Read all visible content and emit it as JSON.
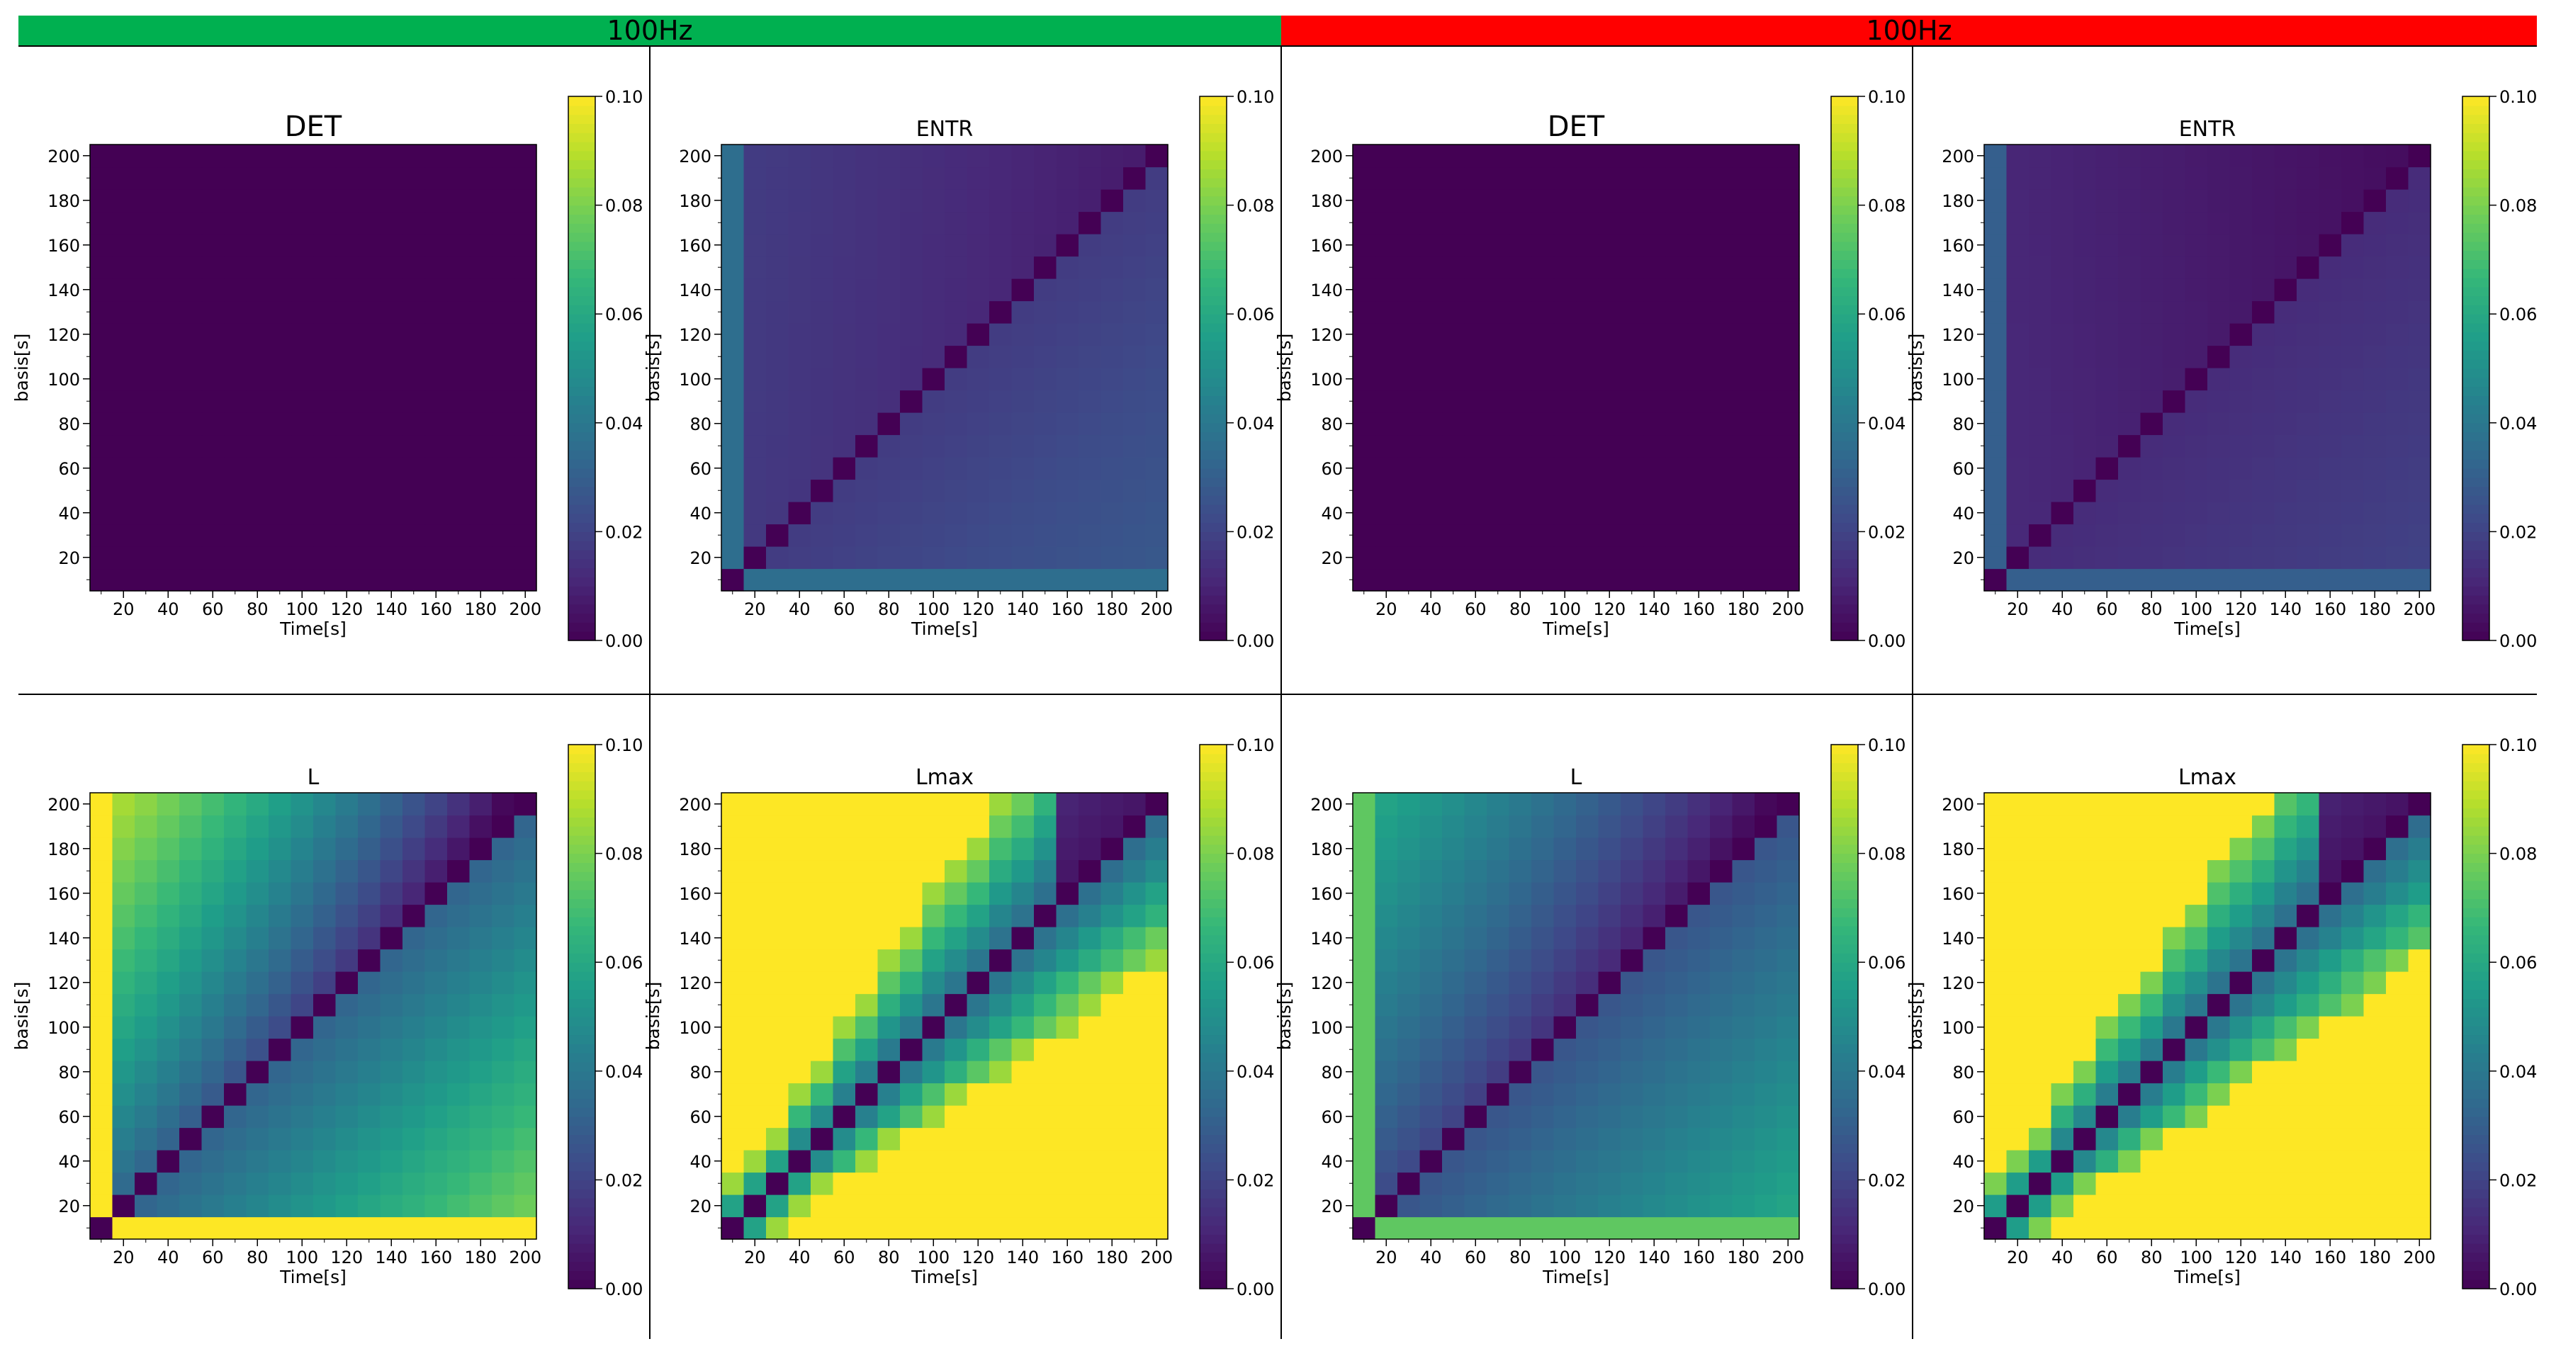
{
  "banners": [
    {
      "label": "100Hz",
      "color": "#00b050"
    },
    {
      "label": "100Hz",
      "color": "#ff0000"
    }
  ],
  "colorbar": {
    "colormap": "viridis",
    "vmin": 0.0,
    "vmax": 0.1,
    "ticks": [
      "0.00",
      "0.02",
      "0.04",
      "0.06",
      "0.08",
      "0.10"
    ]
  },
  "chart_data": [
    {
      "type": "heatmap",
      "title": "DET",
      "xlabel": "Time[s]",
      "ylabel": "basis[s]",
      "grid_size": 20,
      "xlim": [
        5,
        205
      ],
      "ylim": [
        5,
        205
      ],
      "x_ticks": [
        20,
        40,
        60,
        80,
        100,
        120,
        140,
        160,
        180,
        200
      ],
      "y_ticks": [
        20,
        40,
        60,
        80,
        100,
        120,
        140,
        160,
        180,
        200
      ],
      "value_range": [
        0,
        0.1
      ],
      "pattern": {
        "kind": "uniform",
        "value": 0.0
      }
    },
    {
      "type": "heatmap",
      "title": "ENTR",
      "xlabel": "Time[s]",
      "ylabel": "basis[s]",
      "grid_size": 20,
      "xlim": [
        5,
        205
      ],
      "ylim": [
        5,
        205
      ],
      "x_ticks": [
        20,
        40,
        60,
        80,
        100,
        120,
        140,
        160,
        180,
        200
      ],
      "y_ticks": [
        20,
        40,
        60,
        80,
        100,
        120,
        140,
        160,
        180,
        200
      ],
      "value_range": [
        0,
        0.1
      ],
      "pattern": {
        "kind": "entropy",
        "diag": 0.0,
        "edge": 0.036,
        "near": 0.017,
        "far": 0.028,
        "far_top": 0.018
      }
    },
    {
      "type": "heatmap",
      "title": "DET",
      "xlabel": "Time[s]",
      "ylabel": "basis[s]",
      "grid_size": 20,
      "xlim": [
        5,
        205
      ],
      "ylim": [
        5,
        205
      ],
      "x_ticks": [
        20,
        40,
        60,
        80,
        100,
        120,
        140,
        160,
        180,
        200
      ],
      "y_ticks": [
        20,
        40,
        60,
        80,
        100,
        120,
        140,
        160,
        180,
        200
      ],
      "value_range": [
        0,
        0.1
      ],
      "pattern": {
        "kind": "uniform",
        "value": 0.0
      }
    },
    {
      "type": "heatmap",
      "title": "ENTR",
      "xlabel": "Time[s]",
      "ylabel": "basis[s]",
      "grid_size": 20,
      "xlim": [
        5,
        205
      ],
      "ylim": [
        5,
        205
      ],
      "x_ticks": [
        20,
        40,
        60,
        80,
        100,
        120,
        140,
        160,
        180,
        200
      ],
      "y_ticks": [
        20,
        40,
        60,
        80,
        100,
        120,
        140,
        160,
        180,
        200
      ],
      "value_range": [
        0,
        0.1
      ],
      "pattern": {
        "kind": "entropy",
        "diag": 0.0,
        "edge": 0.03,
        "near": 0.012,
        "far": 0.02,
        "far_top": 0.011
      }
    },
    {
      "type": "heatmap",
      "title": "L",
      "xlabel": "Time[s]",
      "ylabel": "basis[s]",
      "grid_size": 20,
      "xlim": [
        5,
        205
      ],
      "ylim": [
        5,
        205
      ],
      "x_ticks": [
        20,
        40,
        60,
        80,
        100,
        120,
        140,
        160,
        180,
        200
      ],
      "y_ticks": [
        20,
        40,
        60,
        80,
        100,
        120,
        140,
        160,
        180,
        200
      ],
      "value_range": [
        0,
        0.1
      ],
      "pattern": {
        "kind": "length",
        "diag": 0.0,
        "col0": 0.1,
        "row0": 0.1,
        "upper_near": 0.03,
        "upper_far": 0.09,
        "upper_top": 0.01,
        "lower_near": 0.03,
        "lower_far": 0.08
      }
    },
    {
      "type": "heatmap",
      "title": "Lmax",
      "xlabel": "Time[s]",
      "ylabel": "basis[s]",
      "grid_size": 20,
      "xlim": [
        5,
        205
      ],
      "ylim": [
        5,
        205
      ],
      "x_ticks": [
        20,
        40,
        60,
        80,
        100,
        120,
        140,
        160,
        180,
        200
      ],
      "y_ticks": [
        20,
        40,
        60,
        80,
        100,
        120,
        140,
        160,
        180,
        200
      ],
      "value_range": [
        0,
        0.1
      ],
      "pattern": {
        "kind": "lmax",
        "diag": 0.0,
        "band_near": 0.03,
        "band_far": 0.085,
        "band_half_width": 2,
        "band_growth": 0.45,
        "top_dark": 0.005
      }
    },
    {
      "type": "heatmap",
      "title": "L",
      "xlabel": "Time[s]",
      "ylabel": "basis[s]",
      "grid_size": 20,
      "xlim": [
        5,
        205
      ],
      "ylim": [
        5,
        205
      ],
      "x_ticks": [
        20,
        40,
        60,
        80,
        100,
        120,
        140,
        160,
        180,
        200
      ],
      "y_ticks": [
        20,
        40,
        60,
        80,
        100,
        120,
        140,
        160,
        180,
        200
      ],
      "value_range": [
        0,
        0.1
      ],
      "pattern": {
        "kind": "length",
        "diag": 0.0,
        "col0": 0.075,
        "row0": 0.075,
        "upper_near": 0.02,
        "upper_far": 0.06,
        "upper_top": 0.008,
        "lower_near": 0.025,
        "lower_far": 0.06
      }
    },
    {
      "type": "heatmap",
      "title": "Lmax",
      "xlabel": "Time[s]",
      "ylabel": "basis[s]",
      "grid_size": 20,
      "xlim": [
        5,
        205
      ],
      "ylim": [
        5,
        205
      ],
      "x_ticks": [
        20,
        40,
        60,
        80,
        100,
        120,
        140,
        160,
        180,
        200
      ],
      "y_ticks": [
        20,
        40,
        60,
        80,
        100,
        120,
        140,
        160,
        180,
        200
      ],
      "value_range": [
        0,
        0.1
      ],
      "pattern": {
        "kind": "lmax",
        "diag": 0.0,
        "band_near": 0.03,
        "band_far": 0.08,
        "band_half_width": 2,
        "band_growth": 0.4,
        "top_dark": 0.004
      }
    }
  ]
}
